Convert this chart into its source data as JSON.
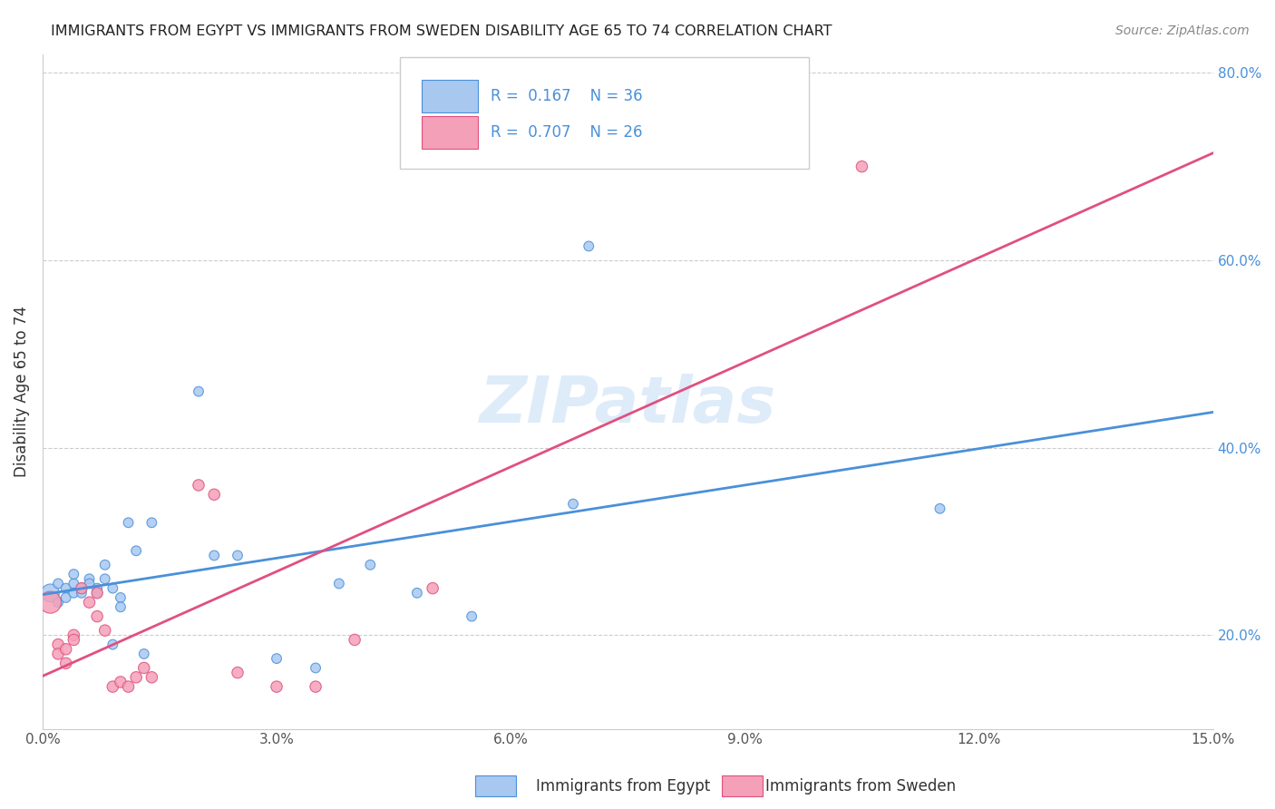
{
  "title": "IMMIGRANTS FROM EGYPT VS IMMIGRANTS FROM SWEDEN DISABILITY AGE 65 TO 74 CORRELATION CHART",
  "source": "Source: ZipAtlas.com",
  "ylabel": "Disability Age 65 to 74",
  "xmin": 0.0,
  "xmax": 0.15,
  "ymin": 0.1,
  "ymax": 0.82,
  "yticks_right": [
    0.2,
    0.4,
    0.6,
    0.8
  ],
  "xticks": [
    0.0,
    0.03,
    0.06,
    0.09,
    0.12,
    0.15
  ],
  "legend_r_egypt": "R =  0.167",
  "legend_n_egypt": "N = 36",
  "legend_r_sweden": "R =  0.707",
  "legend_n_sweden": "N = 26",
  "color_egypt": "#a8c8f0",
  "color_sweden": "#f4a0b8",
  "color_egypt_line": "#4a90d9",
  "color_sweden_line": "#e05080",
  "watermark": "ZIPatlas",
  "bottom_label_egypt": "Immigrants from Egypt",
  "bottom_label_sweden": "Immigrants from Sweden",
  "egypt_x": [
    0.001,
    0.002,
    0.002,
    0.003,
    0.003,
    0.004,
    0.004,
    0.004,
    0.005,
    0.005,
    0.006,
    0.006,
    0.007,
    0.007,
    0.008,
    0.008,
    0.009,
    0.009,
    0.01,
    0.01,
    0.011,
    0.012,
    0.013,
    0.014,
    0.02,
    0.022,
    0.025,
    0.03,
    0.035,
    0.038,
    0.042,
    0.048,
    0.055,
    0.068,
    0.07,
    0.115
  ],
  "egypt_y": [
    0.245,
    0.255,
    0.235,
    0.25,
    0.24,
    0.255,
    0.245,
    0.265,
    0.25,
    0.245,
    0.26,
    0.255,
    0.25,
    0.245,
    0.26,
    0.275,
    0.19,
    0.25,
    0.24,
    0.23,
    0.32,
    0.29,
    0.18,
    0.32,
    0.46,
    0.285,
    0.285,
    0.175,
    0.165,
    0.255,
    0.275,
    0.245,
    0.22,
    0.34,
    0.615,
    0.335
  ],
  "egypt_sizes": [
    200,
    60,
    60,
    60,
    60,
    60,
    60,
    60,
    60,
    60,
    60,
    60,
    60,
    60,
    60,
    60,
    60,
    60,
    60,
    60,
    60,
    60,
    60,
    60,
    60,
    60,
    60,
    60,
    60,
    60,
    60,
    60,
    60,
    60,
    60,
    60
  ],
  "sweden_x": [
    0.001,
    0.002,
    0.002,
    0.003,
    0.003,
    0.004,
    0.004,
    0.005,
    0.006,
    0.007,
    0.007,
    0.008,
    0.009,
    0.01,
    0.011,
    0.012,
    0.013,
    0.014,
    0.02,
    0.022,
    0.025,
    0.03,
    0.035,
    0.04,
    0.05,
    0.105
  ],
  "sweden_y": [
    0.235,
    0.19,
    0.18,
    0.185,
    0.17,
    0.2,
    0.195,
    0.25,
    0.235,
    0.22,
    0.245,
    0.205,
    0.145,
    0.15,
    0.145,
    0.155,
    0.165,
    0.155,
    0.36,
    0.35,
    0.16,
    0.145,
    0.145,
    0.195,
    0.25,
    0.7
  ],
  "sweden_sizes": [
    300,
    80,
    80,
    80,
    80,
    80,
    80,
    80,
    80,
    80,
    80,
    80,
    80,
    80,
    80,
    80,
    80,
    80,
    80,
    80,
    80,
    80,
    80,
    80,
    80,
    80
  ]
}
